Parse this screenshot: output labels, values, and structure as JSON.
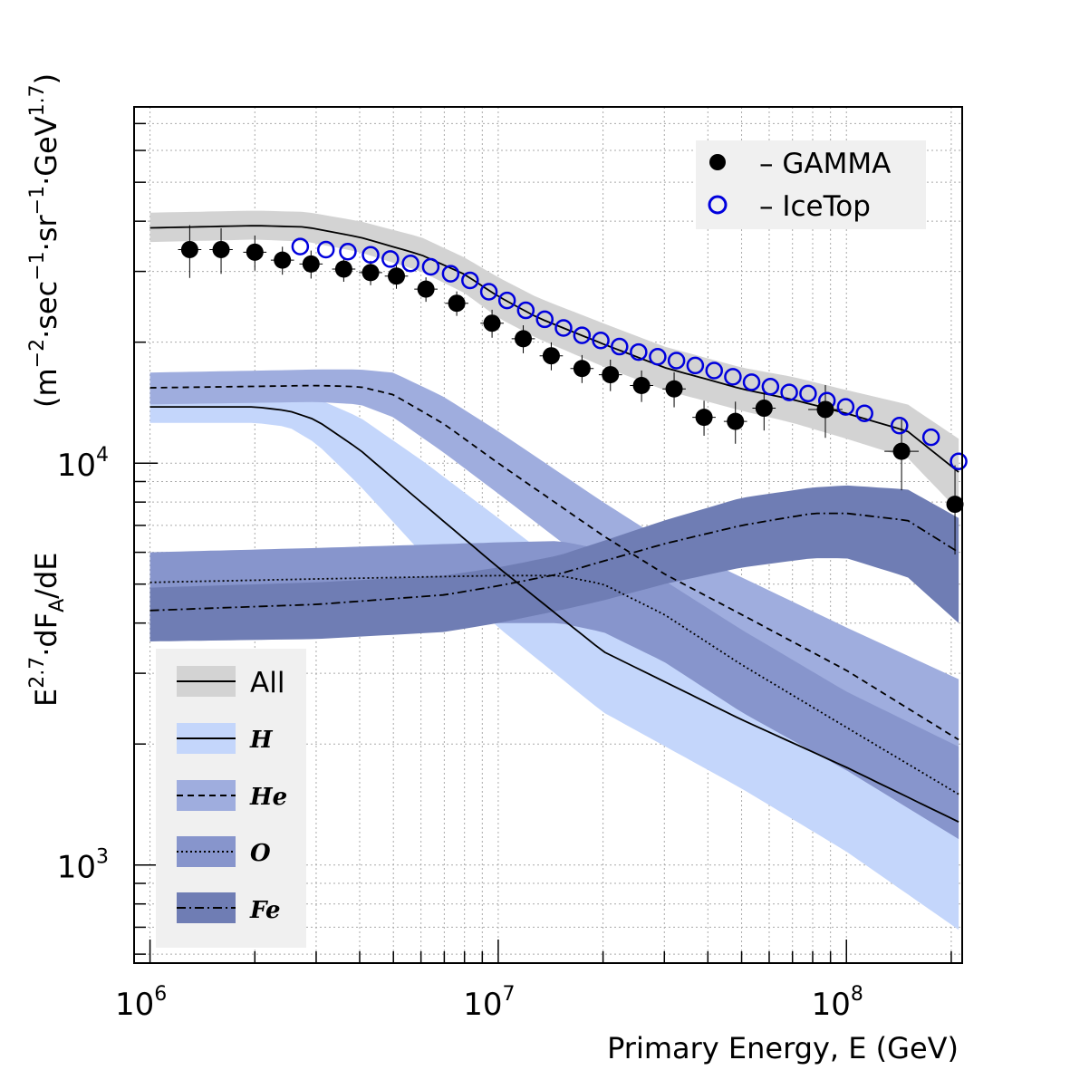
{
  "chart_data": {
    "type": "line",
    "xlabel": "Primary Energy, E (GeV)",
    "ylabel": {
      "prefix": "E",
      "prefix_sup": "2.7",
      "dot1": "·dF",
      "sub": "A",
      "rest": "/dE",
      "units": "(m",
      "u1": "−2",
      "u2": "·sec",
      "u3": "−1",
      "u4": "·sr",
      "u5": "−1",
      "u6": "·GeV",
      "u7": "1.7",
      "close": ")"
    },
    "x_log": true,
    "y_log": true,
    "xlim": [
      900000,
      215000000
    ],
    "ylim": [
      570,
      77000
    ],
    "grid": true,
    "x_ticks": [
      {
        "base": "10",
        "exp": "6",
        "value": 1000000
      },
      {
        "base": "10",
        "exp": "7",
        "value": 10000000
      },
      {
        "base": "10",
        "exp": "8",
        "value": 100000000
      }
    ],
    "y_ticks": [
      {
        "base": "10",
        "exp": "3",
        "value": 1000
      },
      {
        "base": "10",
        "exp": "4",
        "value": 10000
      }
    ],
    "points_legend": {
      "position": "top-right",
      "entries": [
        {
          "label": "– GAMMA",
          "marker": "filled-circle",
          "color": "#000000"
        },
        {
          "label": "– IceTop",
          "marker": "open-circle",
          "color": "#0000dd"
        }
      ]
    },
    "band_legend": {
      "position": "bottom-left",
      "entries": [
        {
          "label": "All",
          "band_color": "#d3d3d3",
          "dash": "solid"
        },
        {
          "label": "H",
          "band_color": "#c4d6fb",
          "dash": "solid"
        },
        {
          "label": "He",
          "band_color": "#9fadde",
          "dash": "dashed"
        },
        {
          "label": "O",
          "band_color": "#8795cc",
          "dash": "dotted"
        },
        {
          "label": "Fe",
          "band_color": "#6f7db4",
          "dash": "dashdot"
        }
      ]
    },
    "models": [
      {
        "name": "All",
        "band_color": "#d3d3d3",
        "dash": "solid",
        "x": [
          1000000,
          2000000,
          2800000,
          4000000,
          6000000,
          8000000,
          10000000,
          13000000,
          20000000,
          30000000,
          50000000,
          70000000,
          100000000,
          150000000,
          210000000
        ],
        "center": [
          38500,
          39000,
          38700,
          36500,
          33000,
          29500,
          26000,
          23000,
          19800,
          17300,
          15300,
          14400,
          13300,
          12000,
          9500
        ],
        "lower": [
          35500,
          36000,
          35600,
          33500,
          30000,
          26500,
          23000,
          20400,
          17400,
          15200,
          13500,
          12600,
          11500,
          10300,
          7600
        ],
        "upper": [
          42000,
          42500,
          42200,
          40000,
          36500,
          32500,
          29000,
          25800,
          22300,
          19500,
          17300,
          16400,
          15200,
          14000,
          11500
        ]
      },
      {
        "name": "H",
        "band_color": "#c4d6fb",
        "dash": "solid",
        "x": [
          1000000,
          2000000,
          2500000,
          3000000,
          4000000,
          6000000,
          10000000,
          20000000,
          50000000,
          100000000,
          210000000
        ],
        "center": [
          13800,
          13800,
          13500,
          12800,
          10800,
          8000,
          5500,
          3400,
          2300,
          1750,
          1280
        ],
        "lower": [
          12600,
          12600,
          12300,
          11200,
          8800,
          6000,
          3900,
          2400,
          1550,
          1080,
          690
        ],
        "upper": [
          15200,
          15200,
          15000,
          14500,
          13000,
          10200,
          7300,
          4600,
          3150,
          2350,
          1850
        ]
      },
      {
        "name": "He",
        "band_color": "#9fadde",
        "dash": "dashed",
        "x": [
          1000000,
          3000000,
          4000000,
          5000000,
          7000000,
          10000000,
          20000000,
          30000000,
          50000000,
          100000000,
          210000000
        ],
        "center": [
          15400,
          15600,
          15500,
          14800,
          12500,
          10000,
          6600,
          5300,
          4200,
          3050,
          2050
        ],
        "lower": [
          14000,
          14200,
          14000,
          13000,
          10600,
          8400,
          5300,
          4200,
          3300,
          2400,
          1560
        ],
        "upper": [
          16800,
          17100,
          17100,
          16800,
          14600,
          12000,
          8000,
          6400,
          5200,
          3900,
          2900
        ]
      },
      {
        "name": "O",
        "band_color": "#8795cc",
        "dash": "dotted",
        "x": [
          1000000,
          3000000,
          10000000,
          15000000,
          20000000,
          30000000,
          50000000,
          100000000,
          210000000
        ],
        "center": [
          5050,
          5150,
          5250,
          5250,
          5000,
          4200,
          3150,
          2200,
          1500
        ],
        "lower": [
          3700,
          3800,
          4000,
          4000,
          3800,
          3200,
          2400,
          1720,
          1160
        ],
        "upper": [
          6000,
          6150,
          6350,
          6400,
          6100,
          5100,
          3850,
          2700,
          1970
        ]
      },
      {
        "name": "Fe",
        "band_color": "#6f7db4",
        "dash": "dashdot",
        "x": [
          1000000,
          3000000,
          7000000,
          10000000,
          15000000,
          20000000,
          30000000,
          50000000,
          80000000,
          100000000,
          150000000,
          210000000
        ],
        "center": [
          4300,
          4450,
          4700,
          4950,
          5300,
          5700,
          6300,
          7000,
          7500,
          7500,
          7200,
          6000
        ],
        "lower": [
          3600,
          3650,
          3800,
          4000,
          4300,
          4550,
          5000,
          5500,
          5800,
          5800,
          5200,
          4000
        ],
        "upper": [
          4900,
          5050,
          5250,
          5500,
          5900,
          6400,
          7200,
          8200,
          8700,
          8800,
          8600,
          7300
        ]
      }
    ],
    "series": [
      {
        "name": "GAMMA",
        "marker": "filled-circle",
        "color": "#000000",
        "x": [
          1300000,
          1600000,
          2000000,
          2400000,
          2900000,
          3600000,
          4300000,
          5100000,
          6200000,
          7600000,
          9600000,
          11800000,
          14200000,
          17400000,
          21000000,
          25800000,
          32000000,
          39000000,
          48000000,
          58000000,
          87000000,
          144000000,
          205000000
        ],
        "y": [
          34000,
          34000,
          33500,
          32000,
          31300,
          30400,
          29800,
          29200,
          27100,
          25000,
          22300,
          20400,
          18500,
          17200,
          16600,
          15600,
          15300,
          13000,
          12700,
          13700,
          13600,
          10700,
          7900
        ],
        "err_x": [
          0.08,
          0.08,
          0.08,
          0.08,
          0.08,
          0.08,
          0.08,
          0.08,
          0.08,
          0.08,
          0.08,
          0.08,
          0.08,
          0.08,
          0.08,
          0.08,
          0.08,
          0.08,
          0.08,
          0.08,
          0.12,
          0.12,
          0.05
        ],
        "err_y": [
          0.15,
          0.13,
          0.1,
          0.08,
          0.08,
          0.07,
          0.07,
          0.07,
          0.07,
          0.07,
          0.08,
          0.08,
          0.08,
          0.08,
          0.09,
          0.09,
          0.1,
          0.1,
          0.12,
          0.12,
          0.15,
          0.2,
          0.25
        ]
      },
      {
        "name": "IceTop",
        "marker": "open-circle",
        "color": "#0000dd",
        "x": [
          2700000,
          3200000,
          3700000,
          4300000,
          4900000,
          5600000,
          6400000,
          7300000,
          8300000,
          9400000,
          10600000,
          12000000,
          13600000,
          15400000,
          17400000,
          19700000,
          22300000,
          25300000,
          28700000,
          32500000,
          36800000,
          41700000,
          47200000,
          53400000,
          60500000,
          68500000,
          77600000,
          87900000,
          99500000,
          112700000,
          142000000,
          175000000,
          210000000
        ],
        "y": [
          34600,
          34000,
          33600,
          33000,
          32200,
          31400,
          30800,
          29600,
          28500,
          26700,
          25400,
          24000,
          22800,
          21700,
          20800,
          20200,
          19500,
          18900,
          18400,
          18000,
          17500,
          17000,
          16400,
          15900,
          15500,
          15000,
          14900,
          14300,
          13800,
          13300,
          12400,
          11600,
          10100
        ]
      }
    ]
  }
}
